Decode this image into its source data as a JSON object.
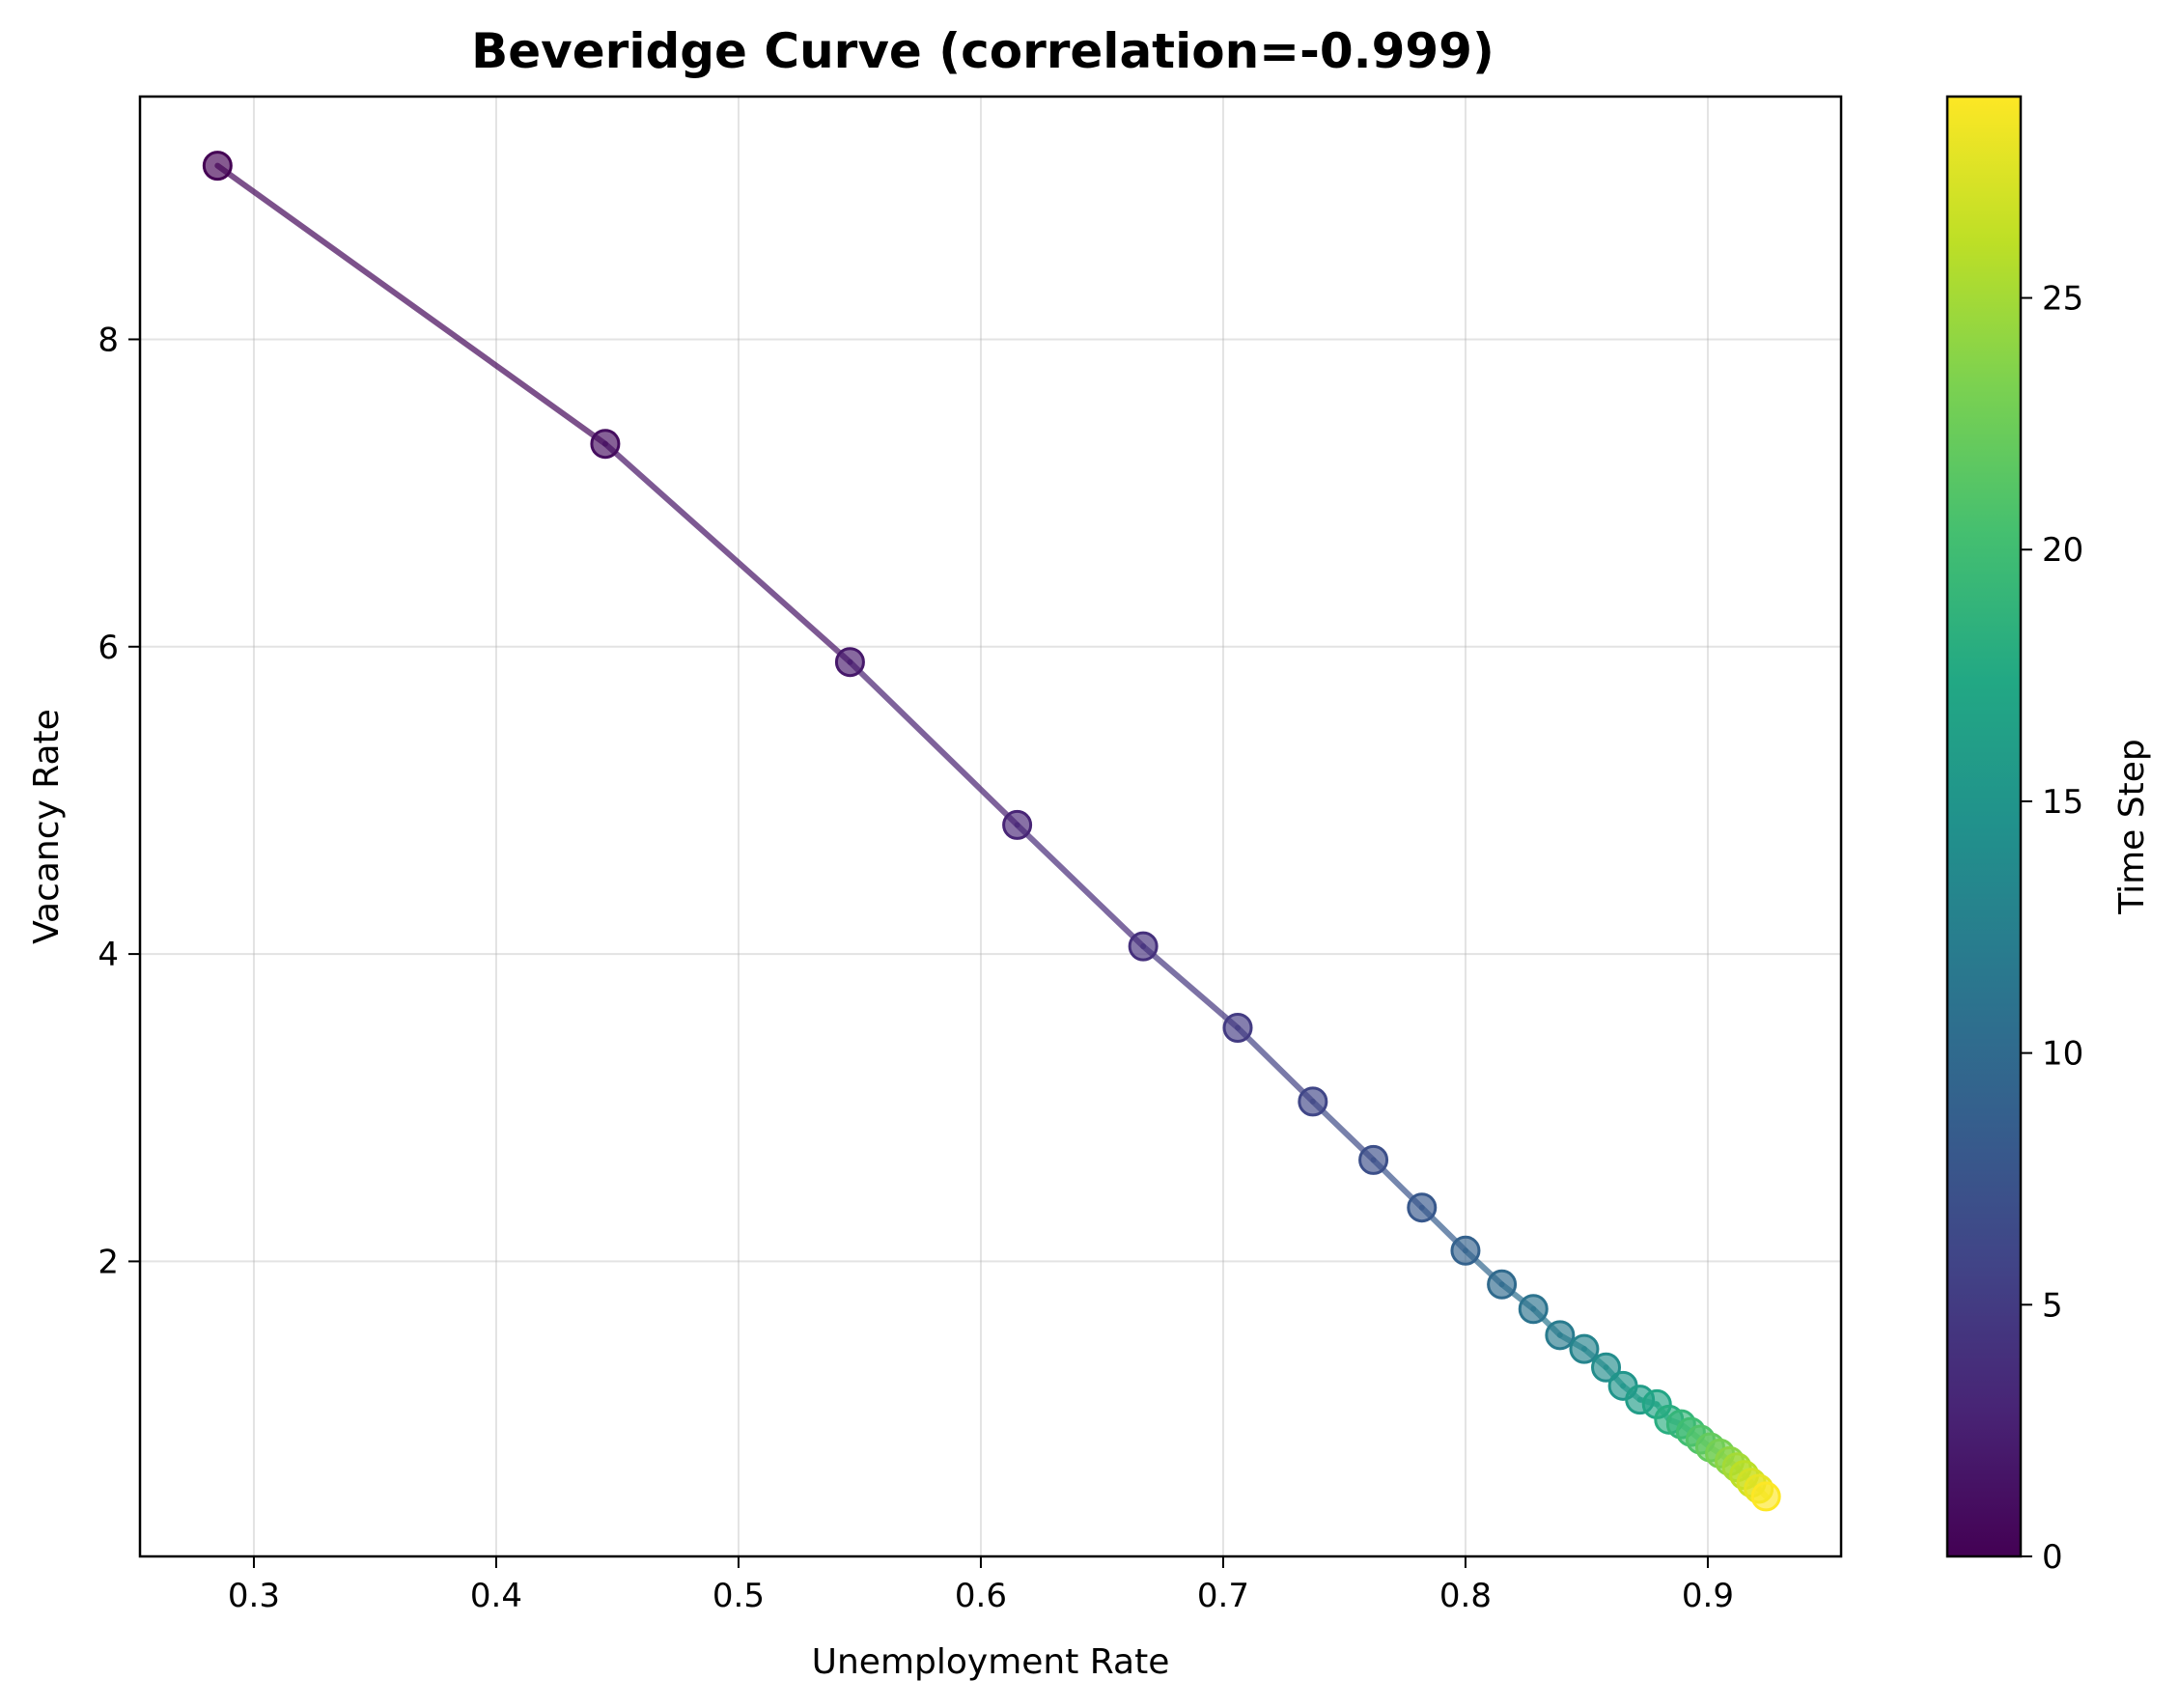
{
  "chart_data": {
    "type": "scatter",
    "title": "Beveridge Curve (correlation=-0.999)",
    "xlabel": "Unemployment Rate",
    "ylabel": "Vacancy Rate",
    "xlim": [
      0.253,
      0.955
    ],
    "ylim": [
      0.08,
      9.58
    ],
    "xticks": [
      0.3,
      0.4,
      0.5,
      0.6,
      0.7,
      0.8,
      0.9
    ],
    "yticks": [
      2,
      4,
      6,
      8
    ],
    "grid": true,
    "colormap": "viridis",
    "colorbar": {
      "label": "Time Step",
      "range": [
        0,
        29
      ],
      "ticks": [
        0,
        5,
        10,
        15,
        20,
        25
      ]
    },
    "points": [
      {
        "t": 0,
        "x": 0.285,
        "y": 9.13
      },
      {
        "t": 1,
        "x": 0.445,
        "y": 7.32
      },
      {
        "t": 2,
        "x": 0.546,
        "y": 5.9
      },
      {
        "t": 3,
        "x": 0.615,
        "y": 4.84
      },
      {
        "t": 4,
        "x": 0.667,
        "y": 4.05
      },
      {
        "t": 5,
        "x": 0.706,
        "y": 3.52
      },
      {
        "t": 6,
        "x": 0.737,
        "y": 3.04
      },
      {
        "t": 7,
        "x": 0.762,
        "y": 2.66
      },
      {
        "t": 8,
        "x": 0.782,
        "y": 2.35
      },
      {
        "t": 9,
        "x": 0.8,
        "y": 2.07
      },
      {
        "t": 10,
        "x": 0.815,
        "y": 1.85
      },
      {
        "t": 11,
        "x": 0.828,
        "y": 1.69
      },
      {
        "t": 12,
        "x": 0.839,
        "y": 1.52
      },
      {
        "t": 13,
        "x": 0.849,
        "y": 1.43
      },
      {
        "t": 14,
        "x": 0.858,
        "y": 1.31
      },
      {
        "t": 15,
        "x": 0.865,
        "y": 1.19
      },
      {
        "t": 16,
        "x": 0.872,
        "y": 1.1
      },
      {
        "t": 17,
        "x": 0.879,
        "y": 1.07
      },
      {
        "t": 18,
        "x": 0.884,
        "y": 0.97
      },
      {
        "t": 19,
        "x": 0.889,
        "y": 0.94
      },
      {
        "t": 20,
        "x": 0.893,
        "y": 0.89
      },
      {
        "t": 21,
        "x": 0.897,
        "y": 0.84
      },
      {
        "t": 22,
        "x": 0.901,
        "y": 0.79
      },
      {
        "t": 23,
        "x": 0.905,
        "y": 0.75
      },
      {
        "t": 24,
        "x": 0.909,
        "y": 0.7
      },
      {
        "t": 25,
        "x": 0.912,
        "y": 0.66
      },
      {
        "t": 26,
        "x": 0.915,
        "y": 0.61
      },
      {
        "t": 27,
        "x": 0.918,
        "y": 0.56
      },
      {
        "t": 28,
        "x": 0.921,
        "y": 0.52
      },
      {
        "t": 29,
        "x": 0.924,
        "y": 0.47
      }
    ]
  }
}
